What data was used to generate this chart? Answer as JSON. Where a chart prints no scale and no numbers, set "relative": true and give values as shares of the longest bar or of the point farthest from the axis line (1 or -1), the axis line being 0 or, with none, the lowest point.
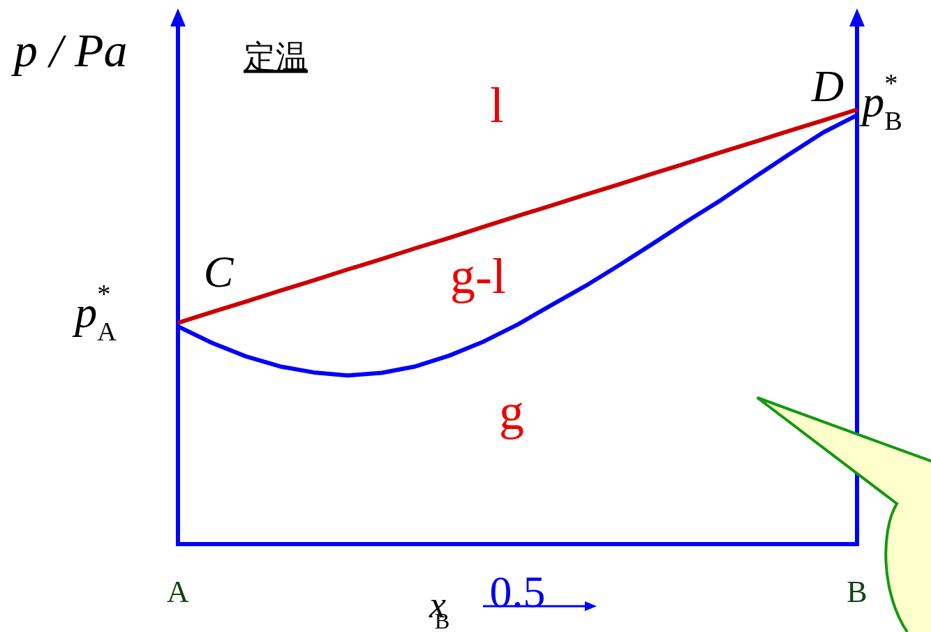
{
  "chart_data": {
    "type": "line",
    "relative": true,
    "ylabel": "p / Pa",
    "xlabel": "x$_{B}$",
    "categories": [
      "A",
      null,
      null,
      null,
      null,
      null,
      null,
      null,
      null,
      null,
      "0.5",
      null,
      null,
      null,
      null,
      null,
      null,
      null,
      null,
      null,
      "B"
    ],
    "series": [
      {
        "color": "#cc0000",
        "values": [
          0.509,
          0.534,
          0.558,
          0.583,
          0.607,
          0.632,
          0.656,
          0.681,
          0.705,
          0.73,
          0.755,
          0.779,
          0.804,
          0.828,
          0.853,
          0.877,
          0.902,
          0.926,
          0.951,
          0.975,
          1
        ]
      },
      {
        "color": "#0000ff",
        "values": [
          0.501,
          0.463,
          0.432,
          0.409,
          0.395,
          0.388,
          0.394,
          0.409,
          0.434,
          0.466,
          0.505,
          0.55,
          0.594,
          0.642,
          0.692,
          0.743,
          0.792,
          0.845,
          0.897,
          0.947,
          0.987
        ]
      }
    ],
    "annotations": [
      "定温",
      "l",
      "g-l",
      "g",
      {
        "text": "C",
        "x": "A",
        "y": 0.509
      },
      {
        "text": "D",
        "x": "B",
        "y": 1
      },
      {
        "text": "p$^{*}$$_{A}$",
        "x": "A",
        "y": 0.509
      },
      {
        "text": "p$^{*}$$_{B}$",
        "x": "B",
        "y": 1
      }
    ]
  }
}
